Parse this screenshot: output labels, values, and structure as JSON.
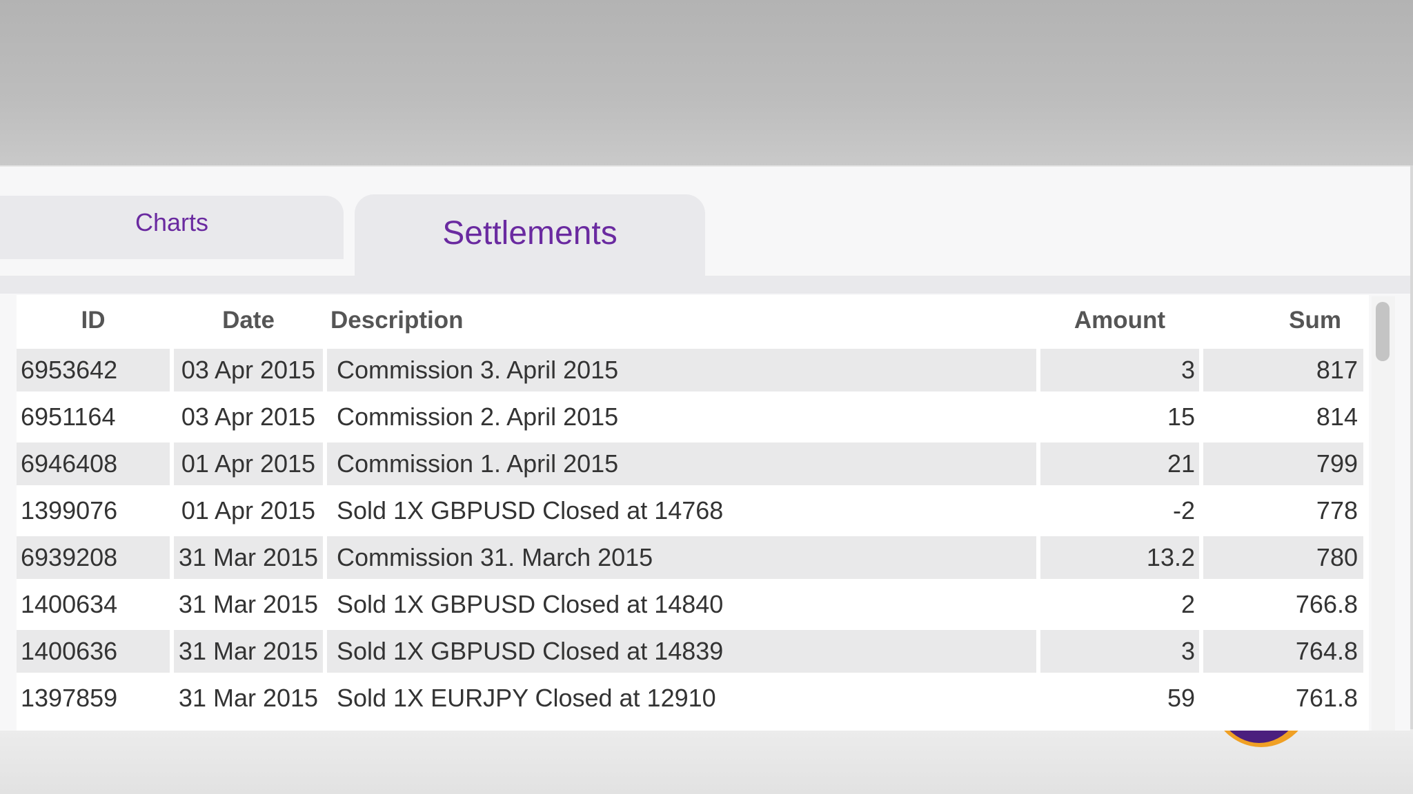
{
  "tabs": {
    "charts_label": "Charts",
    "settlements_label": "Settlements"
  },
  "table": {
    "headers": {
      "id": "ID",
      "date": "Date",
      "description": "Description",
      "amount": "Amount",
      "sum": "Sum"
    },
    "rows": [
      {
        "id": "6953642",
        "date": "03 Apr 2015",
        "description": "Commission 3. April 2015",
        "amount": "3",
        "sum": "817"
      },
      {
        "id": "6951164",
        "date": "03 Apr 2015",
        "description": "Commission 2. April 2015",
        "amount": "15",
        "sum": "814"
      },
      {
        "id": "6946408",
        "date": "01 Apr 2015",
        "description": "Commission 1. April 2015",
        "amount": "21",
        "sum": "799"
      },
      {
        "id": "1399076",
        "date": "01 Apr 2015",
        "description": "Sold 1X GBPUSD Closed at 14768",
        "amount": "-2",
        "sum": "778"
      },
      {
        "id": "6939208",
        "date": "31 Mar 2015",
        "description": "Commission 31. March 2015",
        "amount": "13.2",
        "sum": "780"
      },
      {
        "id": "1400634",
        "date": "31 Mar 2015",
        "description": "Sold 1X GBPUSD Closed at 14840",
        "amount": "2",
        "sum": "766.8"
      },
      {
        "id": "1400636",
        "date": "31 Mar 2015",
        "description": "Sold 1X GBPUSD Closed at 14839",
        "amount": "3",
        "sum": "764.8"
      },
      {
        "id": "1397859",
        "date": "31 Mar 2015",
        "description": "Sold 1X EURJPY Closed at 12910",
        "amount": "59",
        "sum": "761.8"
      }
    ]
  },
  "colors": {
    "accent": "#6a2aa0",
    "logo_orange": "#f0a024",
    "logo_purple": "#4b1f7e"
  },
  "icons": {
    "scrollbar": "vertical-scrollbar",
    "logo": "brand-logo-ring"
  }
}
